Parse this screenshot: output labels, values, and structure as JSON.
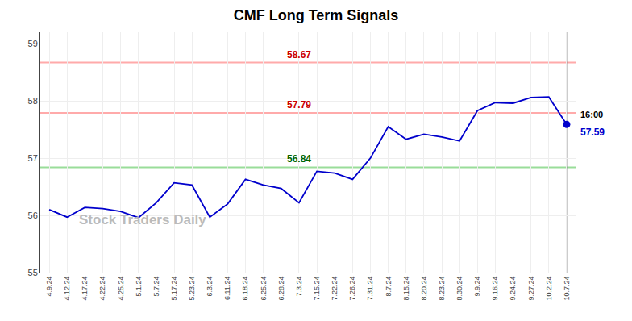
{
  "chart_data": {
    "type": "line",
    "title": "CMF Long Term Signals",
    "categories": [
      "4.9.24",
      "4.12.24",
      "4.17.24",
      "4.22.24",
      "4.25.24",
      "5.1.24",
      "5.7.24",
      "5.17.24",
      "5.23.24",
      "6.3.24",
      "6.11.24",
      "6.18.24",
      "6.25.24",
      "6.28.24",
      "7.3.24",
      "7.15.24",
      "7.22.24",
      "7.26.24",
      "7.31.24",
      "8.7.24",
      "8.15.24",
      "8.20.24",
      "8.23.24",
      "8.30.24",
      "9.9.24",
      "9.16.24",
      "9.24.24",
      "9.27.24",
      "10.2.24",
      "10.7.24"
    ],
    "values": [
      56.1,
      55.97,
      56.14,
      56.12,
      56.07,
      55.96,
      56.22,
      56.57,
      56.53,
      55.97,
      56.2,
      56.63,
      56.53,
      56.47,
      56.22,
      56.77,
      56.74,
      56.63,
      57.0,
      57.55,
      57.33,
      57.42,
      57.37,
      57.3,
      57.83,
      57.97,
      57.96,
      58.06,
      58.07,
      57.59
    ],
    "color": "#0000cc",
    "last_point": {
      "label": "16:00",
      "value_label": "57.59"
    },
    "reference_lines": [
      {
        "value": 58.67,
        "label": "58.67",
        "color": "#ffaaaa",
        "label_color": "#cc0000"
      },
      {
        "value": 57.79,
        "label": "57.79",
        "color": "#ffaaaa",
        "label_color": "#cc0000"
      },
      {
        "value": 56.84,
        "label": "56.84",
        "color": "#99dd99",
        "label_color": "#006600"
      }
    ],
    "watermark": "Stock Traders Daily",
    "ylim": [
      55.0,
      59.2
    ],
    "yticks": [
      55,
      56,
      57,
      58,
      59
    ],
    "grid": true
  }
}
